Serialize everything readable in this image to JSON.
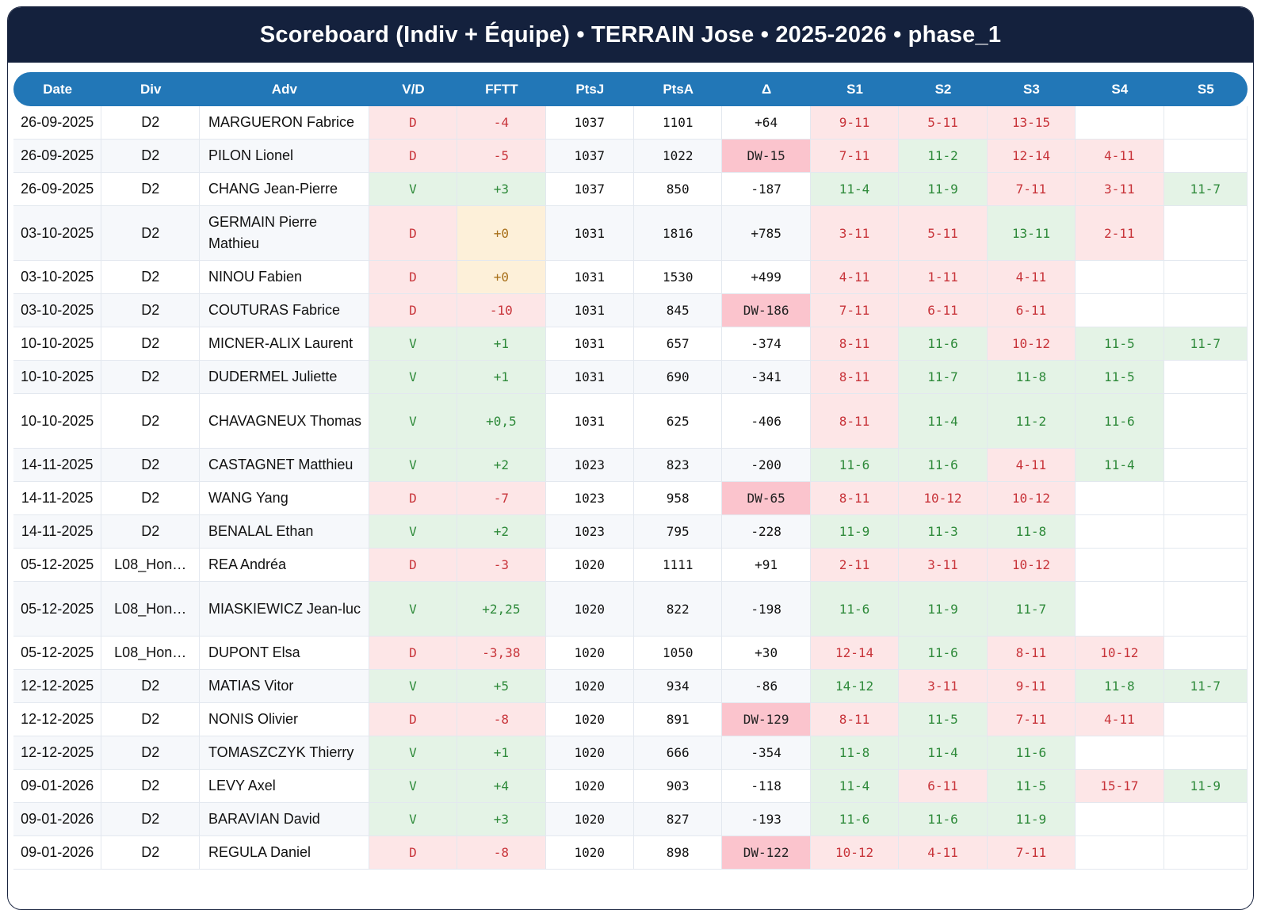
{
  "title": "Scoreboard (Indiv + Équipe) • TERRAIN Jose • 2025-2026 • phase_1",
  "headers": [
    "Date",
    "Div",
    "Adv",
    "V/D",
    "FFTT",
    "PtsJ",
    "PtsA",
    "Δ",
    "S1",
    "S2",
    "S3",
    "S4",
    "S5"
  ],
  "colors": {
    "header_bg": "#14213d",
    "table_header_bg": "#2277b7",
    "win_bg": "#e4f3e6",
    "win_text": "#2e8a3a",
    "loss_bg": "#fde6e7",
    "loss_text": "#c8343a",
    "zero_bg": "#fdf0d9",
    "zero_text": "#a8701a",
    "dw_bg": "#fbc4cd"
  },
  "rows": [
    {
      "date": "26-09-2025",
      "div": "D2",
      "adv": "MARGUERON Fabrice",
      "vd": "D",
      "fftt": "-4",
      "ptsj": "1037",
      "ptsa": "1101",
      "delta": "+64",
      "sets": [
        "9-11",
        "5-11",
        "13-15",
        "",
        ""
      ]
    },
    {
      "date": "26-09-2025",
      "div": "D2",
      "adv": "PILON Lionel",
      "vd": "D",
      "fftt": "-5",
      "ptsj": "1037",
      "ptsa": "1022",
      "delta": "DW-15",
      "sets": [
        "7-11",
        "11-2",
        "12-14",
        "4-11",
        ""
      ]
    },
    {
      "date": "26-09-2025",
      "div": "D2",
      "adv": "CHANG Jean-Pierre",
      "vd": "V",
      "fftt": "+3",
      "ptsj": "1037",
      "ptsa": "850",
      "delta": "-187",
      "sets": [
        "11-4",
        "11-9",
        "7-11",
        "3-11",
        "11-7"
      ]
    },
    {
      "date": "03-10-2025",
      "div": "D2",
      "adv": "GERMAIN Pierre Mathieu",
      "vd": "D",
      "fftt": "+0",
      "ptsj": "1031",
      "ptsa": "1816",
      "delta": "+785",
      "sets": [
        "3-11",
        "5-11",
        "13-11",
        "2-11",
        ""
      ]
    },
    {
      "date": "03-10-2025",
      "div": "D2",
      "adv": "NINOU Fabien",
      "vd": "D",
      "fftt": "+0",
      "ptsj": "1031",
      "ptsa": "1530",
      "delta": "+499",
      "sets": [
        "4-11",
        "1-11",
        "4-11",
        "",
        ""
      ]
    },
    {
      "date": "03-10-2025",
      "div": "D2",
      "adv": "COUTURAS Fabrice",
      "vd": "D",
      "fftt": "-10",
      "ptsj": "1031",
      "ptsa": "845",
      "delta": "DW-186",
      "sets": [
        "7-11",
        "6-11",
        "6-11",
        "",
        ""
      ]
    },
    {
      "date": "10-10-2025",
      "div": "D2",
      "adv": "MICNER-ALIX Laurent",
      "vd": "V",
      "fftt": "+1",
      "ptsj": "1031",
      "ptsa": "657",
      "delta": "-374",
      "sets": [
        "8-11",
        "11-6",
        "10-12",
        "11-5",
        "11-7"
      ]
    },
    {
      "date": "10-10-2025",
      "div": "D2",
      "adv": "DUDERMEL Juliette",
      "vd": "V",
      "fftt": "+1",
      "ptsj": "1031",
      "ptsa": "690",
      "delta": "-341",
      "sets": [
        "8-11",
        "11-7",
        "11-8",
        "11-5",
        ""
      ]
    },
    {
      "date": "10-10-2025",
      "div": "D2",
      "adv": "CHAVAGNEUX Thomas",
      "vd": "V",
      "fftt": "+0,5",
      "ptsj": "1031",
      "ptsa": "625",
      "delta": "-406",
      "sets": [
        "8-11",
        "11-4",
        "11-2",
        "11-6",
        ""
      ]
    },
    {
      "date": "14-11-2025",
      "div": "D2",
      "adv": "CASTAGNET Matthieu",
      "vd": "V",
      "fftt": "+2",
      "ptsj": "1023",
      "ptsa": "823",
      "delta": "-200",
      "sets": [
        "11-6",
        "11-6",
        "4-11",
        "11-4",
        ""
      ]
    },
    {
      "date": "14-11-2025",
      "div": "D2",
      "adv": "WANG Yang",
      "vd": "D",
      "fftt": "-7",
      "ptsj": "1023",
      "ptsa": "958",
      "delta": "DW-65",
      "sets": [
        "8-11",
        "10-12",
        "10-12",
        "",
        ""
      ]
    },
    {
      "date": "14-11-2025",
      "div": "D2",
      "adv": "BENALAL Ethan",
      "vd": "V",
      "fftt": "+2",
      "ptsj": "1023",
      "ptsa": "795",
      "delta": "-228",
      "sets": [
        "11-9",
        "11-3",
        "11-8",
        "",
        ""
      ]
    },
    {
      "date": "05-12-2025",
      "div": "L08_Hon…",
      "adv": "REA Andréa",
      "vd": "D",
      "fftt": "-3",
      "ptsj": "1020",
      "ptsa": "1111",
      "delta": "+91",
      "sets": [
        "2-11",
        "3-11",
        "10-12",
        "",
        ""
      ]
    },
    {
      "date": "05-12-2025",
      "div": "L08_Hon…",
      "adv": "MIASKIEWICZ Jean-luc",
      "vd": "V",
      "fftt": "+2,25",
      "ptsj": "1020",
      "ptsa": "822",
      "delta": "-198",
      "sets": [
        "11-6",
        "11-9",
        "11-7",
        "",
        ""
      ]
    },
    {
      "date": "05-12-2025",
      "div": "L08_Hon…",
      "adv": "DUPONT Elsa",
      "vd": "D",
      "fftt": "-3,38",
      "ptsj": "1020",
      "ptsa": "1050",
      "delta": "+30",
      "sets": [
        "12-14",
        "11-6",
        "8-11",
        "10-12",
        ""
      ]
    },
    {
      "date": "12-12-2025",
      "div": "D2",
      "adv": "MATIAS Vitor",
      "vd": "V",
      "fftt": "+5",
      "ptsj": "1020",
      "ptsa": "934",
      "delta": "-86",
      "sets": [
        "14-12",
        "3-11",
        "9-11",
        "11-8",
        "11-7"
      ]
    },
    {
      "date": "12-12-2025",
      "div": "D2",
      "adv": "NONIS Olivier",
      "vd": "D",
      "fftt": "-8",
      "ptsj": "1020",
      "ptsa": "891",
      "delta": "DW-129",
      "sets": [
        "8-11",
        "11-5",
        "7-11",
        "4-11",
        ""
      ]
    },
    {
      "date": "12-12-2025",
      "div": "D2",
      "adv": "TOMASZCZYK Thierry",
      "vd": "V",
      "fftt": "+1",
      "ptsj": "1020",
      "ptsa": "666",
      "delta": "-354",
      "sets": [
        "11-8",
        "11-4",
        "11-6",
        "",
        ""
      ]
    },
    {
      "date": "09-01-2026",
      "div": "D2",
      "adv": "LEVY Axel",
      "vd": "V",
      "fftt": "+4",
      "ptsj": "1020",
      "ptsa": "903",
      "delta": "-118",
      "sets": [
        "11-4",
        "6-11",
        "11-5",
        "15-17",
        "11-9"
      ]
    },
    {
      "date": "09-01-2026",
      "div": "D2",
      "adv": "BARAVIAN David",
      "vd": "V",
      "fftt": "+3",
      "ptsj": "1020",
      "ptsa": "827",
      "delta": "-193",
      "sets": [
        "11-6",
        "11-6",
        "11-9",
        "",
        ""
      ]
    },
    {
      "date": "09-01-2026",
      "div": "D2",
      "adv": "REGULA Daniel",
      "vd": "D",
      "fftt": "-8",
      "ptsj": "1020",
      "ptsa": "898",
      "delta": "DW-122",
      "sets": [
        "10-12",
        "4-11",
        "7-11",
        "",
        ""
      ]
    }
  ]
}
